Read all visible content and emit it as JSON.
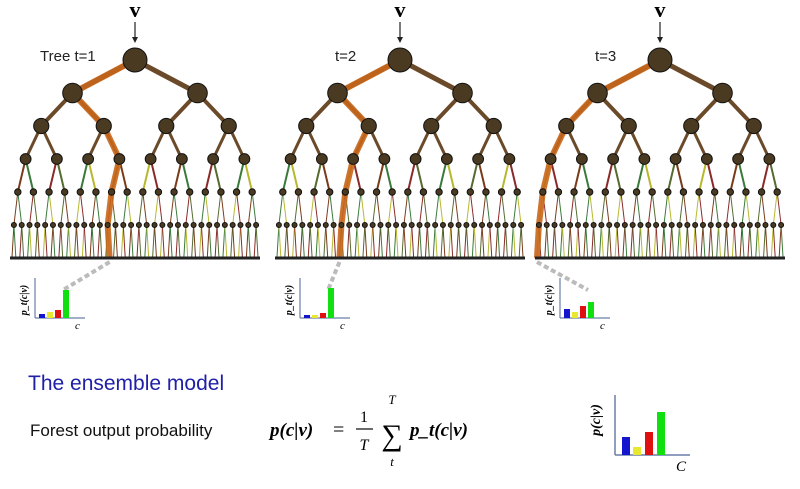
{
  "trees": [
    {
      "input": "v",
      "label": "Tree t=1",
      "hist_y": "p_t(c|v)",
      "hist_x": "c"
    },
    {
      "input": "v",
      "label": "t=2",
      "hist_y": "p_t(c|v)",
      "hist_x": "c"
    },
    {
      "input": "v",
      "label": "t=3",
      "hist_y": "p_t(c|v)",
      "hist_x": "c"
    }
  ],
  "ensemble": {
    "title": "The ensemble model",
    "caption": "Forest output probability",
    "lhs": "p(c|v)",
    "equals": "=",
    "numerator": "1",
    "denominator": "T",
    "sum": "∑",
    "sum_top": "T",
    "sum_bottom": "t",
    "rhs": "p_t(c|v)"
  },
  "output": {
    "y_label": "p(c|v)",
    "x_label": "C"
  }
}
